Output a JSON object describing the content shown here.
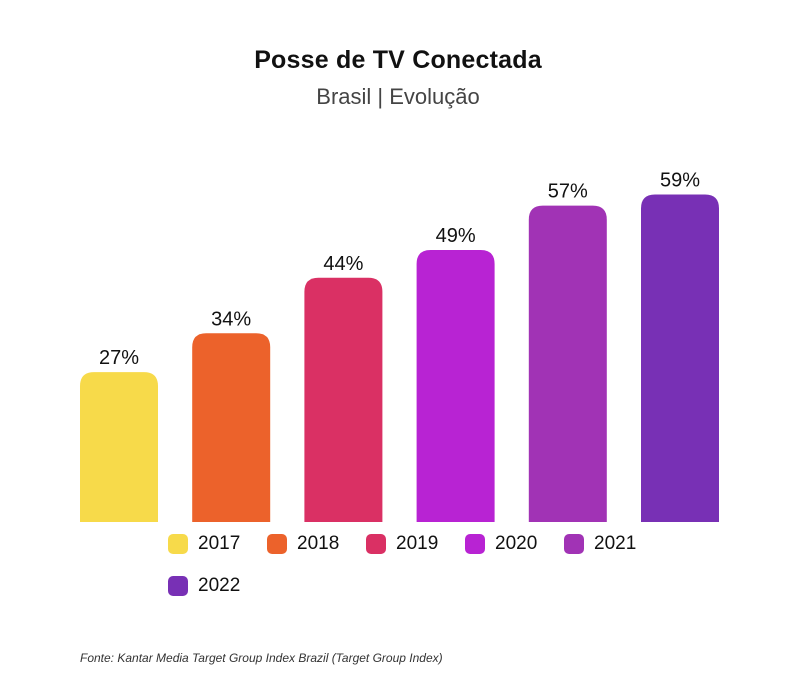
{
  "chart_data": {
    "type": "bar",
    "title": "Posse de TV Conectada",
    "subtitle": "Brasil | Evolução",
    "categories": [
      "2017",
      "2018",
      "2019",
      "2020",
      "2021",
      "2022"
    ],
    "values": [
      27,
      34,
      44,
      49,
      57,
      59
    ],
    "data_labels": [
      "27%",
      "34%",
      "44%",
      "49%",
      "57%",
      "59%"
    ],
    "colors": [
      "#F7DA4A",
      "#EC622B",
      "#DA3064",
      "#B823D3",
      "#A133B5",
      "#7830B5"
    ],
    "unit": "%",
    "ylim": [
      0,
      100
    ],
    "grid": false,
    "legend_position": "bottom"
  },
  "source": "Fonte: Kantar Media Target Group Index Brazil (Target Group Index)"
}
